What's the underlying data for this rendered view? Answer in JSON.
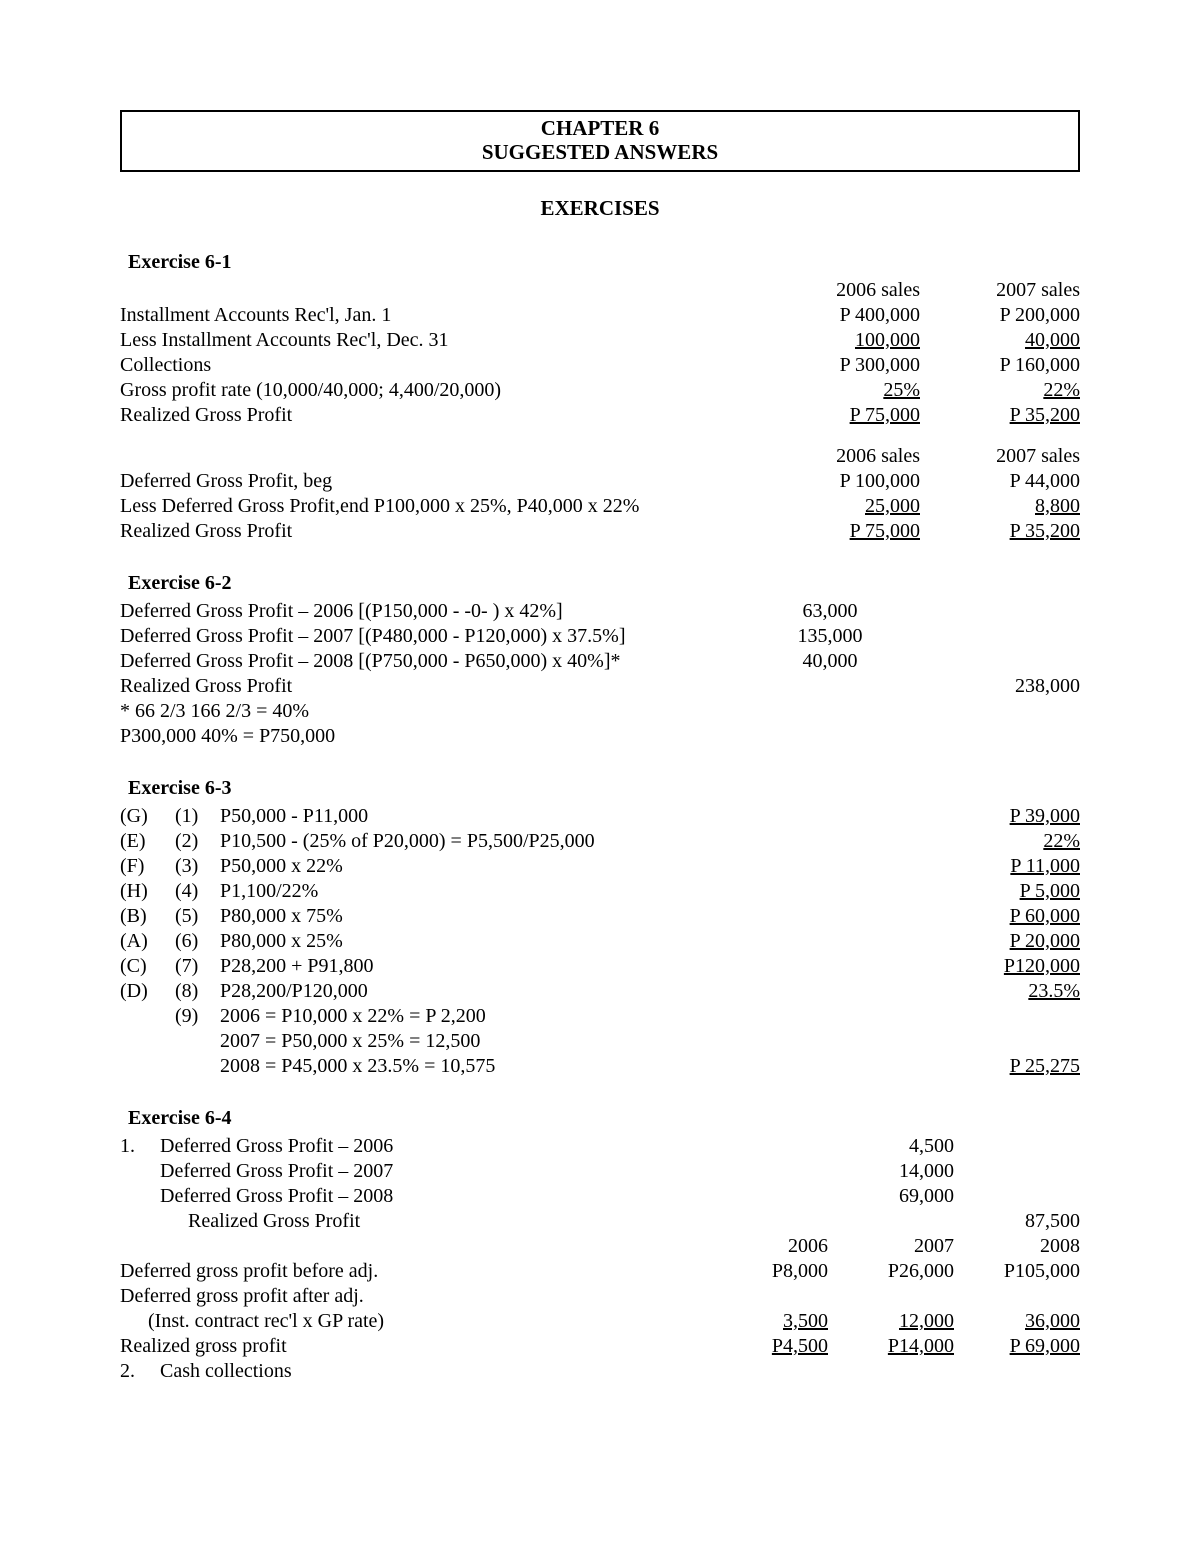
{
  "header": {
    "line1": "CHAPTER 6",
    "line2": "SUGGESTED ANSWERS"
  },
  "exercises_heading": "EXERCISES",
  "e61": {
    "title": "Exercise 6-1",
    "col1_header": "2006 sales",
    "col2_header": "2007 sales",
    "r1_label": "Installment Accounts Rec'l, Jan. 1",
    "r1_c1": "P  400,000",
    "r1_c2": "P  200,000",
    "r2_label": "Less Installment Accounts Rec'l, Dec. 31",
    "r2_c1": "    100,000",
    "r2_c2": "      40,000",
    "r3_label": "Collections",
    "r3_c1": "P  300,000",
    "r3_c2": "P  160,000",
    "r4_label": "Gross profit rate (10,000/40,000; 4,400/20,000)",
    "r4_c1": "      25%   ",
    "r4_c2": "      22%   ",
    "r5_label": "Realized Gross Profit",
    "r5_c1": "P     75,000",
    "r5_c2": "P     35,200",
    "b_col1_header": "2006 sales",
    "b_col2_header": "2007 sales",
    "rb1_label": "Deferred Gross Profit, beg",
    "rb1_c1": "P  100,000",
    "rb1_c2": "P  44,000",
    "rb2_label": "Less Deferred Gross Profit,end P100,000 x 25%,  P40,000 x 22%",
    "rb2_c1": "      25,000",
    "rb2_c2": "       8,800",
    "rb3_label": "Realized Gross Profit",
    "rb3_c1": "P     75,000",
    "rb3_c2": "P     35,200"
  },
  "e62": {
    "title": "Exercise 6-2",
    "r1_label": "Deferred Gross Profit – 2006  [(P150,000 - -0- ) x 42%]",
    "r1_v": "63,000",
    "r2_label": "Deferred Gross Profit – 2007  [(P480,000 - P120,000) x 37.5%]",
    "r2_v": "135,000",
    "r3_label": "Deferred Gross Profit – 2008 [(P750,000 - P650,000) x 40%]*",
    "r3_v": "40,000",
    "r4_label": "Realized Gross Profit",
    "r4_v": "238,000",
    "note1": "* 66 2/3  166 2/3 = 40%",
    "note2": "P300,000  40% = P750,000"
  },
  "e63": {
    "title": "Exercise 6-3",
    "rows": [
      {
        "tag": "(G)",
        "num": "(1)",
        "calc": "P50,000 - P11,000",
        "ans": "P  39,000",
        "u": true
      },
      {
        "tag": "(E)",
        "num": "(2)",
        "calc": "P10,500 - (25% of P20,000) = P5,500/P25,000",
        "ans": "     22%",
        "u": true
      },
      {
        "tag": "(F)",
        "num": "(3)",
        "calc": "P50,000 x 22%",
        "ans": "P  11,000",
        "u": true
      },
      {
        "tag": "(H)",
        "num": "(4)",
        "calc": "P1,100/22%",
        "ans": "P    5,000",
        "u": true
      },
      {
        "tag": "(B)",
        "num": "(5)",
        "calc": "P80,000 x 75%",
        "ans": "P  60,000",
        "u": true
      },
      {
        "tag": "(A)",
        "num": "(6)",
        "calc": "P80,000 x 25%",
        "ans": "P  20,000",
        "u": true
      },
      {
        "tag": "(C)",
        "num": "(7)",
        "calc": "P28,200 + P91,800",
        "ans": "P120,000",
        "u": true
      },
      {
        "tag": "(D)",
        "num": "(8)",
        "calc": "P28,200/P120,000",
        "ans": "   23.5%",
        "u": true
      }
    ],
    "nine_tag": "",
    "nine_num": "(9)",
    "nine_l1": "2006 = P10,000 x 22%    =  P  2,200",
    "nine_l2": "2007 = P50,000 x 25%    =     12,500",
    "nine_l3": "2008 = P45,000 x 23.5% =    10,575",
    "nine_ans": "P  25,275"
  },
  "e64": {
    "title": "Exercise 6-4",
    "n1": "1.",
    "l1": "Deferred Gross Profit – 2006",
    "v1": "4,500",
    "l2": "Deferred Gross Profit – 2007",
    "v2": "14,000",
    "l3": "Deferred Gross Profit – 2008",
    "v3": "69,000",
    "l4": "Realized Gross Profit",
    "v4": "87,500",
    "h1": "2006",
    "h2": "2007",
    "h3": "2008",
    "rb_label": "Deferred gross profit before adj.",
    "rb_c1": "P8,000",
    "rb_c2": "P26,000",
    "rb_c3": "P105,000",
    "ra_label": "Deferred gross profit after adj.",
    "ra2_label": "(Inst. contract rec'l x GP rate)",
    "ra_c1": "    3,500",
    "ra_c2": "   12,000",
    "ra_c3": "    36,000",
    "rr_label": "Realized gross profit",
    "rr_c1": "P4,500",
    "rr_c2": "P14,000",
    "rr_c3": "P  69,000",
    "n2": "2.",
    "n2_label": "Cash collections"
  }
}
